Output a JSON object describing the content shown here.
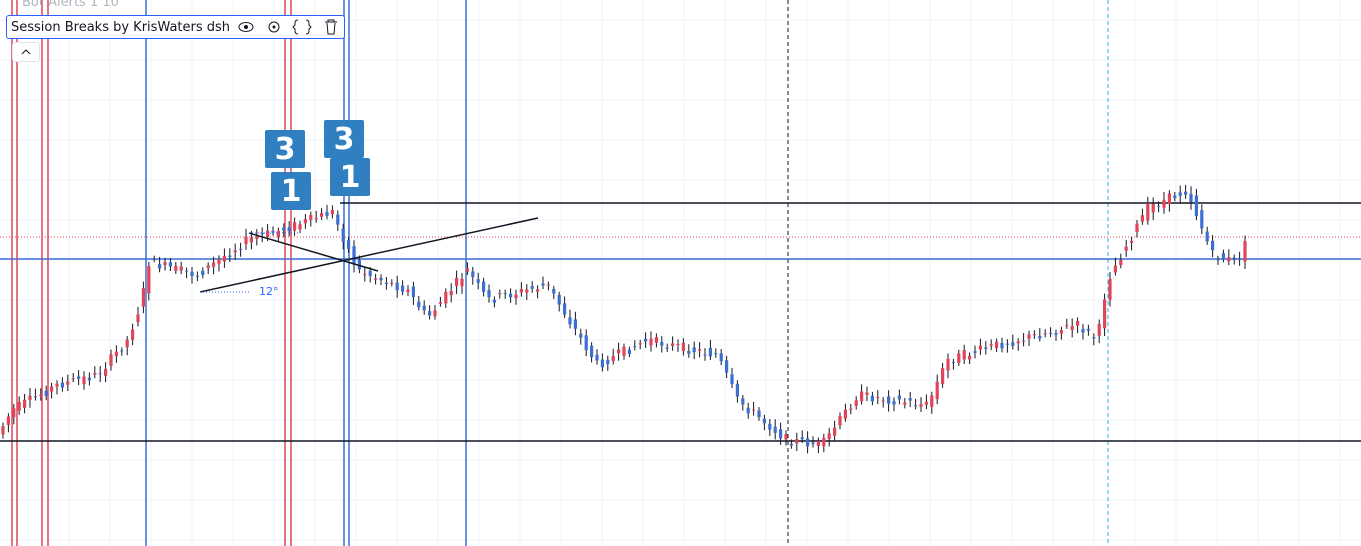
{
  "indicators": {
    "faded_title": "Bot Alerts 1 10",
    "legend": "Session Breaks by KrisWaters dsh"
  },
  "markers": [
    {
      "top": "3",
      "bottom": "1"
    },
    {
      "top": "3",
      "bottom": "1"
    }
  ],
  "drawing": {
    "angle_label": "12°"
  }
}
